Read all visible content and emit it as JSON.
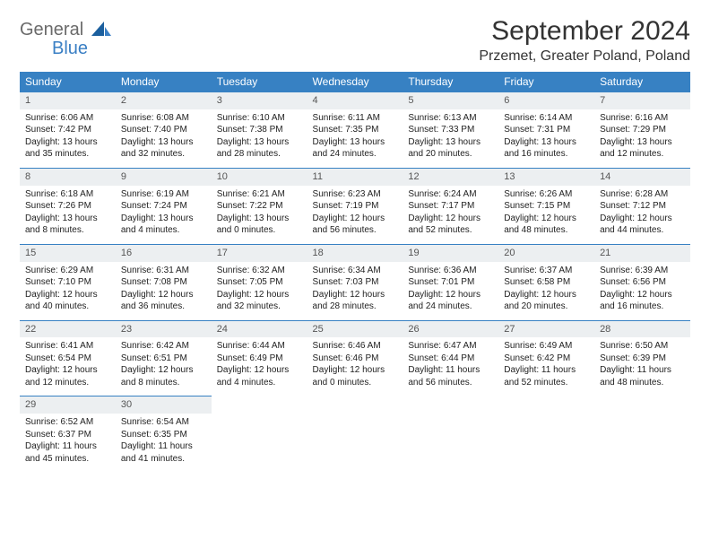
{
  "logo": {
    "text1": "General",
    "text2": "Blue",
    "color_gray": "#6a6a6a",
    "color_blue": "#3a7fc4"
  },
  "title": "September 2024",
  "location": "Przemet, Greater Poland, Poland",
  "header_bg": "#3781c3",
  "header_fg": "#ffffff",
  "daynum_bg": "#eceff1",
  "border_color": "#3781c3",
  "weekdays": [
    "Sunday",
    "Monday",
    "Tuesday",
    "Wednesday",
    "Thursday",
    "Friday",
    "Saturday"
  ],
  "days": [
    {
      "n": "1",
      "sunrise": "6:06 AM",
      "sunset": "7:42 PM",
      "daylight": "13 hours and 35 minutes."
    },
    {
      "n": "2",
      "sunrise": "6:08 AM",
      "sunset": "7:40 PM",
      "daylight": "13 hours and 32 minutes."
    },
    {
      "n": "3",
      "sunrise": "6:10 AM",
      "sunset": "7:38 PM",
      "daylight": "13 hours and 28 minutes."
    },
    {
      "n": "4",
      "sunrise": "6:11 AM",
      "sunset": "7:35 PM",
      "daylight": "13 hours and 24 minutes."
    },
    {
      "n": "5",
      "sunrise": "6:13 AM",
      "sunset": "7:33 PM",
      "daylight": "13 hours and 20 minutes."
    },
    {
      "n": "6",
      "sunrise": "6:14 AM",
      "sunset": "7:31 PM",
      "daylight": "13 hours and 16 minutes."
    },
    {
      "n": "7",
      "sunrise": "6:16 AM",
      "sunset": "7:29 PM",
      "daylight": "13 hours and 12 minutes."
    },
    {
      "n": "8",
      "sunrise": "6:18 AM",
      "sunset": "7:26 PM",
      "daylight": "13 hours and 8 minutes."
    },
    {
      "n": "9",
      "sunrise": "6:19 AM",
      "sunset": "7:24 PM",
      "daylight": "13 hours and 4 minutes."
    },
    {
      "n": "10",
      "sunrise": "6:21 AM",
      "sunset": "7:22 PM",
      "daylight": "13 hours and 0 minutes."
    },
    {
      "n": "11",
      "sunrise": "6:23 AM",
      "sunset": "7:19 PM",
      "daylight": "12 hours and 56 minutes."
    },
    {
      "n": "12",
      "sunrise": "6:24 AM",
      "sunset": "7:17 PM",
      "daylight": "12 hours and 52 minutes."
    },
    {
      "n": "13",
      "sunrise": "6:26 AM",
      "sunset": "7:15 PM",
      "daylight": "12 hours and 48 minutes."
    },
    {
      "n": "14",
      "sunrise": "6:28 AM",
      "sunset": "7:12 PM",
      "daylight": "12 hours and 44 minutes."
    },
    {
      "n": "15",
      "sunrise": "6:29 AM",
      "sunset": "7:10 PM",
      "daylight": "12 hours and 40 minutes."
    },
    {
      "n": "16",
      "sunrise": "6:31 AM",
      "sunset": "7:08 PM",
      "daylight": "12 hours and 36 minutes."
    },
    {
      "n": "17",
      "sunrise": "6:32 AM",
      "sunset": "7:05 PM",
      "daylight": "12 hours and 32 minutes."
    },
    {
      "n": "18",
      "sunrise": "6:34 AM",
      "sunset": "7:03 PM",
      "daylight": "12 hours and 28 minutes."
    },
    {
      "n": "19",
      "sunrise": "6:36 AM",
      "sunset": "7:01 PM",
      "daylight": "12 hours and 24 minutes."
    },
    {
      "n": "20",
      "sunrise": "6:37 AM",
      "sunset": "6:58 PM",
      "daylight": "12 hours and 20 minutes."
    },
    {
      "n": "21",
      "sunrise": "6:39 AM",
      "sunset": "6:56 PM",
      "daylight": "12 hours and 16 minutes."
    },
    {
      "n": "22",
      "sunrise": "6:41 AM",
      "sunset": "6:54 PM",
      "daylight": "12 hours and 12 minutes."
    },
    {
      "n": "23",
      "sunrise": "6:42 AM",
      "sunset": "6:51 PM",
      "daylight": "12 hours and 8 minutes."
    },
    {
      "n": "24",
      "sunrise": "6:44 AM",
      "sunset": "6:49 PM",
      "daylight": "12 hours and 4 minutes."
    },
    {
      "n": "25",
      "sunrise": "6:46 AM",
      "sunset": "6:46 PM",
      "daylight": "12 hours and 0 minutes."
    },
    {
      "n": "26",
      "sunrise": "6:47 AM",
      "sunset": "6:44 PM",
      "daylight": "11 hours and 56 minutes."
    },
    {
      "n": "27",
      "sunrise": "6:49 AM",
      "sunset": "6:42 PM",
      "daylight": "11 hours and 52 minutes."
    },
    {
      "n": "28",
      "sunrise": "6:50 AM",
      "sunset": "6:39 PM",
      "daylight": "11 hours and 48 minutes."
    },
    {
      "n": "29",
      "sunrise": "6:52 AM",
      "sunset": "6:37 PM",
      "daylight": "11 hours and 45 minutes."
    },
    {
      "n": "30",
      "sunrise": "6:54 AM",
      "sunset": "6:35 PM",
      "daylight": "11 hours and 41 minutes."
    }
  ],
  "labels": {
    "sunrise": "Sunrise:",
    "sunset": "Sunset:",
    "daylight": "Daylight:"
  },
  "start_weekday_index": 0,
  "total_cells": 35
}
